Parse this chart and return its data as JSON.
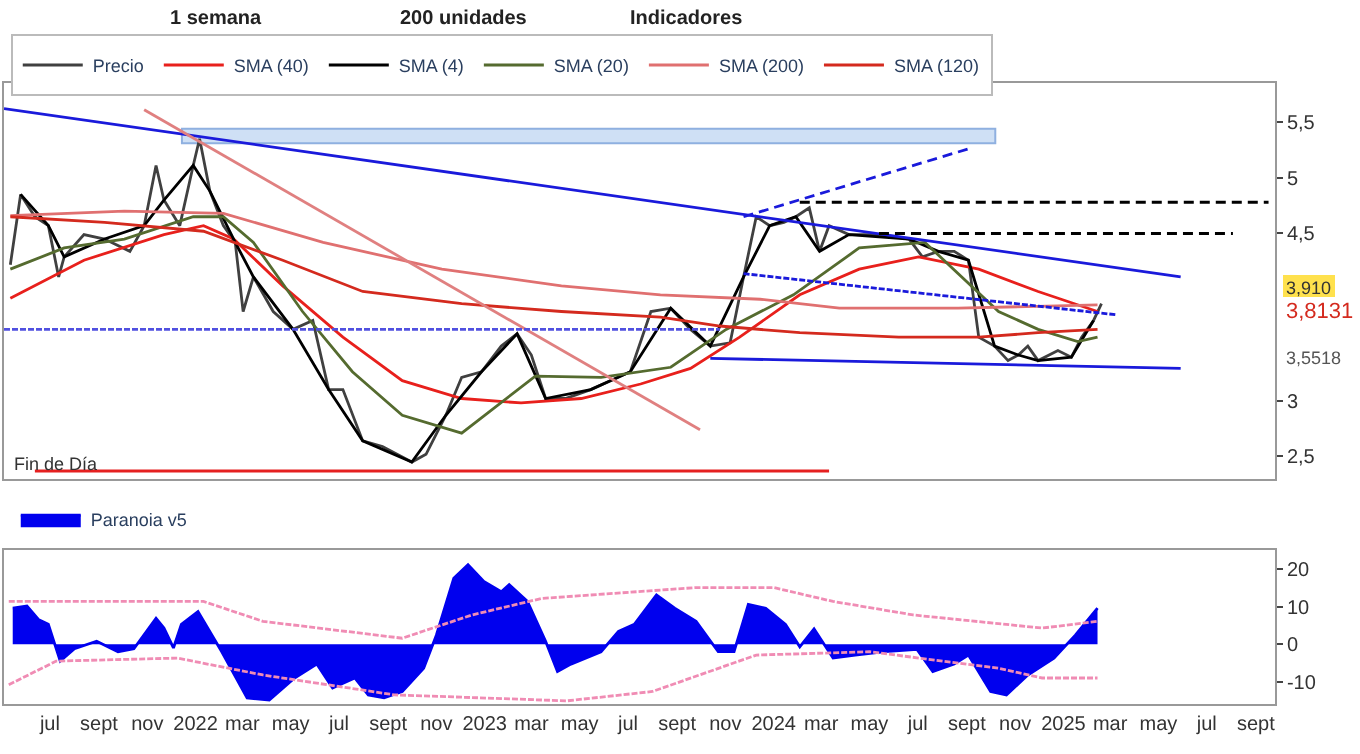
{
  "chart_data": [
    {
      "type": "line",
      "xlim": [
        "2021-05-04",
        "2025-09-25"
      ],
      "ylim": [
        2.3,
        5.85
      ],
      "yticks": [
        {
          "value": 2.5,
          "label": "2,5"
        },
        3,
        {
          "value": 4.5,
          "label": "4,5"
        },
        5,
        {
          "value": 5.5,
          "label": "5,5"
        }
      ],
      "tick_labels": "y",
      "grid": false,
      "legend": "top left",
      "annotations": [
        "1 semana",
        "200 unidades",
        "Indicadores",
        "Fin de Día",
        "3,910",
        "3,8131",
        "3,5518"
      ],
      "bands": [
        {
          "axis": "y",
          "from": 5.31,
          "to": 5.44,
          "color": "#cfe0f5"
        }
      ],
      "series": [
        {
          "name": "Precio",
          "color": "#404040",
          "x": [
            "2021-05-12",
            "2021-05-25",
            "2021-06-12",
            "2021-06-29",
            "2021-07-12",
            "2021-07-19",
            "2021-08-13",
            "2021-09-08",
            "2021-10-10",
            "2021-10-28",
            "2021-11-12",
            "2021-11-22",
            "2021-12-12",
            "2021-12-29",
            "2022-01-06",
            "2022-01-19",
            "2022-02-05",
            "2022-02-20",
            "2022-03-02",
            "2022-03-15",
            "2022-04-09",
            "2022-05-04",
            "2022-05-29",
            "2022-06-18",
            "2022-07-06",
            "2022-07-31",
            "2022-08-25",
            "2022-10-01",
            "2022-10-19",
            "2022-11-13",
            "2022-12-03",
            "2022-12-28",
            "2023-01-22",
            "2023-02-11",
            "2023-03-01",
            "2023-03-19",
            "2023-04-13",
            "2023-05-15",
            "2023-06-09",
            "2023-07-04",
            "2023-07-30",
            "2023-08-24",
            "2023-09-18",
            "2023-10-13",
            "2023-11-07",
            "2023-11-24",
            "2023-12-10",
            "2023-12-27",
            "2024-01-14",
            "2024-01-29",
            "2024-02-15",
            "2024-02-28",
            "2024-03-11",
            "2024-04-05",
            "2024-05-13",
            "2024-06-20",
            "2024-07-07",
            "2024-07-27",
            "2024-08-16",
            "2024-09-03",
            "2024-09-16",
            "2024-10-06",
            "2024-10-23",
            "2024-11-05",
            "2024-11-17",
            "2024-11-30",
            "2024-12-25",
            "2025-01-11",
            "2025-01-24",
            "2025-02-08",
            "2025-02-18"
          ],
          "values": [
            4.22,
            4.85,
            4.65,
            4.57,
            4.11,
            4.29,
            4.49,
            4.45,
            4.34,
            4.57,
            5.11,
            4.8,
            4.57,
            5.11,
            5.35,
            4.88,
            4.57,
            4.42,
            3.8,
            4.11,
            3.8,
            3.64,
            3.72,
            3.1,
            3.1,
            2.64,
            2.59,
            2.45,
            2.52,
            2.87,
            3.21,
            3.26,
            3.49,
            3.6,
            3.41,
            3.02,
            3.02,
            3.1,
            3.18,
            3.26,
            3.8,
            3.83,
            3.64,
            3.49,
            3.52,
            4.11,
            4.65,
            4.57,
            4.6,
            4.65,
            4.73,
            4.34,
            4.57,
            4.49,
            4.49,
            4.45,
            4.29,
            4.34,
            4.34,
            4.26,
            3.57,
            3.49,
            3.36,
            3.41,
            3.49,
            3.36,
            3.45,
            3.39,
            3.57,
            3.72,
            3.87
          ]
        },
        {
          "name": "SMA (40)",
          "color": "#e8201c",
          "x": [
            "2021-05-12",
            "2021-08-13",
            "2021-11-22",
            "2022-01-11",
            "2022-02-18",
            "2022-04-21",
            "2022-07-06",
            "2022-09-19",
            "2022-12-03",
            "2023-02-16",
            "2023-05-03",
            "2023-07-17",
            "2023-09-18",
            "2023-11-19",
            "2024-02-03",
            "2024-04-18",
            "2024-07-02",
            "2024-09-16",
            "2024-11-30",
            "2025-02-13"
          ],
          "values": [
            3.92,
            4.26,
            4.49,
            4.57,
            4.45,
            4.03,
            3.57,
            3.18,
            3.02,
            2.98,
            3.02,
            3.15,
            3.29,
            3.57,
            3.95,
            4.18,
            4.29,
            4.18,
            3.98,
            3.8
          ]
        },
        {
          "name": "SMA (4)",
          "color": "#000000",
          "x": [
            "2021-05-25",
            "2021-06-29",
            "2021-07-19",
            "2021-09-08",
            "2021-10-28",
            "2021-11-22",
            "2021-12-29",
            "2022-01-19",
            "2022-02-20",
            "2022-03-15",
            "2022-05-04",
            "2022-06-18",
            "2022-07-31",
            "2022-10-01",
            "2022-11-13",
            "2022-12-28",
            "2023-02-11",
            "2023-03-19",
            "2023-05-15",
            "2023-07-04",
            "2023-08-24",
            "2023-10-13",
            "2023-11-24",
            "2023-12-27",
            "2024-01-29",
            "2024-02-28",
            "2024-04-05",
            "2024-06-20",
            "2024-07-27",
            "2024-09-03",
            "2024-10-06",
            "2024-11-05",
            "2024-11-30",
            "2025-01-11",
            "2025-02-08"
          ],
          "values": [
            4.85,
            4.57,
            4.29,
            4.45,
            4.57,
            4.8,
            5.11,
            4.88,
            4.42,
            4.11,
            3.64,
            3.1,
            2.64,
            2.45,
            2.87,
            3.26,
            3.6,
            3.02,
            3.1,
            3.26,
            3.83,
            3.49,
            4.11,
            4.57,
            4.65,
            4.34,
            4.49,
            4.45,
            4.34,
            4.26,
            3.49,
            3.41,
            3.36,
            3.39,
            3.72
          ]
        },
        {
          "name": "SMA (20)",
          "color": "#556b2f",
          "x": [
            "2021-05-12",
            "2021-07-19",
            "2021-10-03",
            "2021-12-29",
            "2022-02-05",
            "2022-03-15",
            "2022-05-16",
            "2022-07-18",
            "2022-09-19",
            "2022-12-03",
            "2023-03-06",
            "2023-05-28",
            "2023-08-24",
            "2023-11-02",
            "2024-01-26",
            "2024-04-18",
            "2024-07-10",
            "2024-10-11",
            "2024-11-30",
            "2025-01-19",
            "2025-02-13"
          ],
          "values": [
            4.18,
            4.37,
            4.45,
            4.65,
            4.65,
            4.42,
            3.8,
            3.26,
            2.87,
            2.71,
            3.22,
            3.21,
            3.3,
            3.64,
            3.95,
            4.37,
            4.42,
            3.8,
            3.64,
            3.53,
            3.57
          ]
        },
        {
          "name": "SMA (200)",
          "color": "#e07070",
          "x": [
            "2021-05-12",
            "2021-10-03",
            "2022-02-05",
            "2022-06-11",
            "2022-11-08",
            "2023-04-08",
            "2023-08-11",
            "2023-12-15",
            "2024-03-24",
            "2024-08-21",
            "2025-02-13"
          ],
          "values": [
            4.66,
            4.7,
            4.68,
            4.42,
            4.18,
            4.03,
            3.95,
            3.91,
            3.83,
            3.83,
            3.86
          ]
        },
        {
          "name": "SMA (120)",
          "color": "#d42a1e",
          "x": [
            "2021-05-12",
            "2021-09-08",
            "2022-01-11",
            "2022-04-21",
            "2022-07-31",
            "2022-12-03",
            "2023-04-08",
            "2023-08-11",
            "2023-10-25",
            "2024-02-03",
            "2024-06-07",
            "2024-09-16",
            "2024-11-30",
            "2025-02-13"
          ],
          "values": [
            4.65,
            4.6,
            4.52,
            4.26,
            3.98,
            3.87,
            3.8,
            3.75,
            3.67,
            3.61,
            3.57,
            3.57,
            3.61,
            3.64
          ]
        },
        {
          "color": "#1a1adb",
          "x": [
            "2021-05-04",
            "2025-05-29"
          ],
          "values": [
            5.62,
            4.11
          ]
        },
        {
          "color": "#1a1adb",
          "x": [
            "2023-10-13",
            "2025-05-29"
          ],
          "values": [
            3.38,
            3.29
          ]
        },
        {
          "color": "#e52020",
          "x": [
            "2021-06-12",
            "2024-03-11"
          ],
          "values": [
            2.37,
            2.37
          ]
        },
        {
          "color": "#e08080",
          "x": [
            "2021-10-28",
            "2023-09-30"
          ],
          "values": [
            5.61,
            2.74
          ]
        },
        {
          "color": "#1a1adb",
          "line_style": "dashed",
          "x": [
            "2023-11-24",
            "2024-09-08"
          ],
          "values": [
            4.65,
            5.27
          ]
        },
        {
          "color": "#1a1adb",
          "line_style": "dotted",
          "x": [
            "2023-11-24",
            "2025-03-10"
          ],
          "values": [
            4.14,
            3.77
          ]
        },
        {
          "color": "#000000",
          "line_style": "dashed",
          "x": [
            "2024-02-03",
            "2025-09-17"
          ],
          "values": [
            4.78,
            4.78
          ]
        },
        {
          "color": "#000000",
          "line_style": "dashed",
          "x": [
            "2024-05-13",
            "2025-08-03"
          ],
          "values": [
            4.5,
            4.5
          ]
        },
        {
          "color": "#5050e0",
          "line_style": "dotted",
          "x": [
            "2021-05-04",
            "2023-10-25"
          ],
          "values": [
            3.64,
            3.64
          ]
        }
      ]
    },
    {
      "type": "area",
      "xlim": [
        "2021-05-04",
        "2025-09-25"
      ],
      "ylim": [
        -16,
        25
      ],
      "yticks": [
        -10,
        0,
        10,
        20
      ],
      "grid": false,
      "legend": "top left",
      "xticks": [
        {
          "value": "2021-07-01",
          "label": "jul"
        },
        {
          "value": "2021-09-01",
          "label": "sept"
        },
        {
          "value": "2021-11-01",
          "label": "nov"
        },
        {
          "value": "2022-01-01",
          "label": "2022"
        },
        {
          "value": "2022-03-01",
          "label": "mar"
        },
        {
          "value": "2022-05-01",
          "label": "may"
        },
        {
          "value": "2022-07-01",
          "label": "jul"
        },
        {
          "value": "2022-09-01",
          "label": "sept"
        },
        {
          "value": "2022-11-01",
          "label": "nov"
        },
        {
          "value": "2023-01-01",
          "label": "2023"
        },
        {
          "value": "2023-03-01",
          "label": "mar"
        },
        {
          "value": "2023-05-01",
          "label": "may"
        },
        {
          "value": "2023-07-01",
          "label": "jul"
        },
        {
          "value": "2023-09-01",
          "label": "sept"
        },
        {
          "value": "2023-11-01",
          "label": "nov"
        },
        {
          "value": "2024-01-01",
          "label": "2024"
        },
        {
          "value": "2024-03-01",
          "label": "mar"
        },
        {
          "value": "2024-05-01",
          "label": "may"
        },
        {
          "value": "2024-07-01",
          "label": "jul"
        },
        {
          "value": "2024-09-01",
          "label": "sept"
        },
        {
          "value": "2024-11-01",
          "label": "nov"
        },
        {
          "value": "2025-01-01",
          "label": "2025"
        },
        {
          "value": "2025-03-01",
          "label": "mar"
        },
        {
          "value": "2025-05-01",
          "label": "may"
        },
        {
          "value": "2025-07-01",
          "label": "jul"
        },
        {
          "value": "2025-09-01",
          "label": "sept"
        }
      ],
      "series": [
        {
          "name": "Paranoia v5",
          "color": "#0000ee",
          "x": [
            "2021-05-15",
            "2021-06-02",
            "2021-06-17",
            "2021-06-29",
            "2021-07-14",
            "2021-08-01",
            "2021-08-29",
            "2021-09-25",
            "2021-10-15",
            "2021-11-12",
            "2021-11-22",
            "2021-12-04",
            "2021-12-14",
            "2022-01-04",
            "2022-02-03",
            "2022-03-07",
            "2022-04-04",
            "2022-05-06",
            "2022-06-03",
            "2022-06-23",
            "2022-07-21",
            "2022-08-07",
            "2022-08-27",
            "2022-09-19",
            "2022-10-16",
            "2022-11-01",
            "2022-11-23",
            "2022-12-11",
            "2022-12-31",
            "2023-01-22",
            "2023-02-01",
            "2023-02-24",
            "2023-03-19",
            "2023-04-03",
            "2023-04-20",
            "2023-05-28",
            "2023-06-19",
            "2023-07-09",
            "2023-08-06",
            "2023-08-29",
            "2023-09-25",
            "2023-10-23",
            "2023-11-12",
            "2023-11-30",
            "2023-12-22",
            "2024-01-16",
            "2024-02-03",
            "2024-02-21",
            "2024-03-16",
            "2024-04-13",
            "2024-05-21",
            "2024-06-30",
            "2024-07-20",
            "2024-08-16",
            "2024-09-03",
            "2024-10-01",
            "2024-10-21",
            "2024-11-17",
            "2024-12-20",
            "2025-01-16",
            "2025-02-13"
          ],
          "values": [
            9.6,
            10.2,
            6.5,
            5.3,
            -4.5,
            -1.2,
            0.8,
            -2,
            -1.2,
            6.9,
            4.3,
            -1,
            5.3,
            8.7,
            -2,
            -14.3,
            -14.9,
            -9,
            -5.3,
            -11.7,
            -9,
            -13.5,
            -14.3,
            -12.6,
            -6.4,
            2.4,
            17.6,
            21.2,
            16.7,
            14,
            15.9,
            11.4,
            0.8,
            -7.3,
            -5.3,
            -2,
            3.4,
            5.3,
            13.1,
            9.6,
            6.1,
            -2,
            -2,
            10.6,
            9.6,
            5.3,
            -0.7,
            4.1,
            -3.7,
            -2.9,
            -2,
            -1.4,
            -7.3,
            -5.3,
            -2.9,
            -12.6,
            -13.5,
            -8.2,
            -3.7,
            2.4,
            9.6
          ]
        },
        {
          "type": "line",
          "color": "#f08cb4",
          "line_style": "dotted",
          "x": [
            "2021-05-10",
            "2022-01-11",
            "2022-03-27",
            "2022-09-19",
            "2022-12-16",
            "2023-03-14",
            "2023-09-25",
            "2024-01-01",
            "2024-03-16",
            "2024-06-25",
            "2024-12-05",
            "2025-02-13"
          ],
          "values": [
            11.4,
            11.4,
            6.1,
            1.6,
            7.8,
            12.2,
            15.1,
            15.1,
            11.4,
            7.8,
            4.3,
            6.1
          ]
        },
        {
          "type": "line",
          "color": "#f08cb4",
          "line_style": "dotted",
          "x": [
            "2021-05-10",
            "2021-07-09",
            "2021-12-09",
            "2022-03-27",
            "2022-09-09",
            "2023-04-15",
            "2023-08-01",
            "2023-12-10",
            "2024-05-01",
            "2024-10-11",
            "2024-12-05",
            "2025-02-13"
          ],
          "values": [
            -10.8,
            -4.5,
            -3.7,
            -8.2,
            -13.5,
            -15.1,
            -12.6,
            -2.9,
            -2,
            -6.4,
            -9,
            -9
          ]
        }
      ]
    }
  ]
}
